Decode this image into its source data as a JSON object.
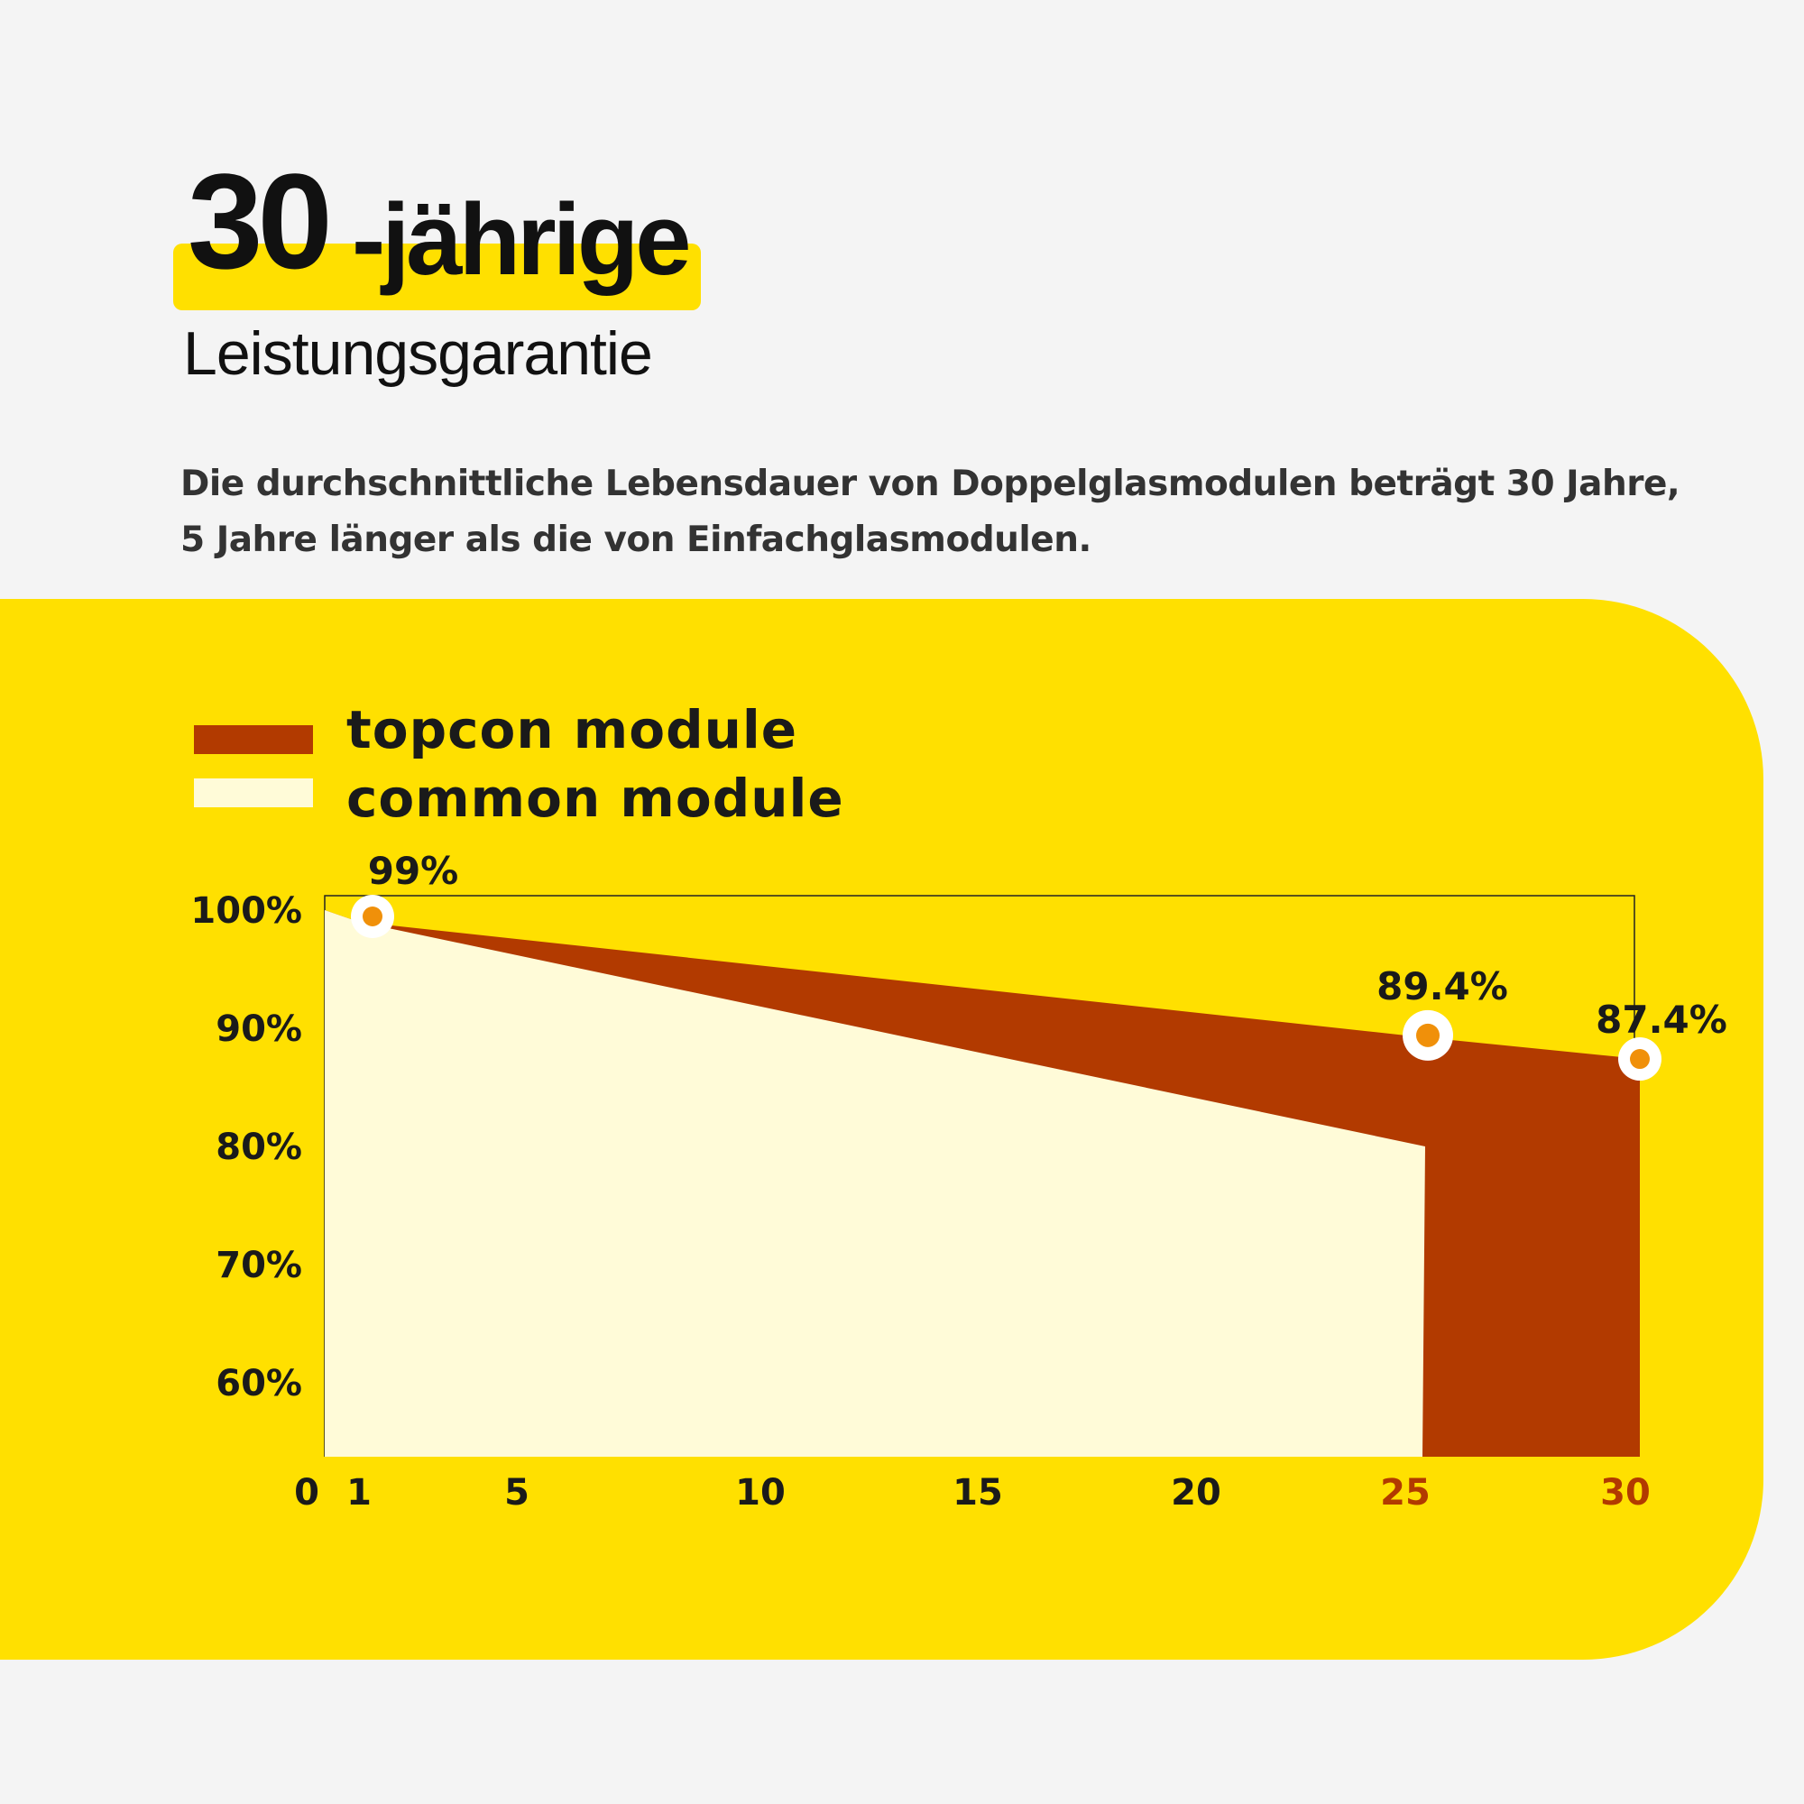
{
  "header": {
    "title_number": "30",
    "title_word": "-jährige",
    "subtitle": "Leistungsgarantie",
    "description": "Die durchschnittliche Lebensdauer von Doppelglasmodulen beträgt 30 Jahre, 5 Jahre länger als die von Einfachglasmodulen."
  },
  "colors": {
    "background": "#f4f4f4",
    "panel": "#ffe000",
    "topcon": "#b23a00",
    "common": "#fffbd8",
    "marker": "#f0900a",
    "highlight_tick": "#b23a00"
  },
  "chart_data": {
    "type": "area",
    "legend": [
      {
        "name": "topcon module",
        "color": "#b23a00"
      },
      {
        "name": "common module",
        "color": "#fffbd8"
      }
    ],
    "legend_position": "top-left",
    "x_ticks": [
      "0",
      "1",
      "5",
      "10",
      "15",
      "20",
      "25",
      "30"
    ],
    "x_highlight_ticks": [
      "25",
      "30"
    ],
    "y_ticks": [
      "100%",
      "90%",
      "80%",
      "70%",
      "60%"
    ],
    "xlim": [
      0,
      30
    ],
    "series": [
      {
        "name": "topcon module",
        "x": [
          0,
          1,
          25,
          30
        ],
        "y": [
          100,
          99,
          89.4,
          87.4
        ]
      },
      {
        "name": "common module",
        "x": [
          0,
          1,
          25
        ],
        "y": [
          100,
          99,
          80
        ]
      }
    ],
    "annotations": [
      {
        "x": 1,
        "y": 99,
        "label": "99%"
      },
      {
        "x": 25,
        "y": 89.4,
        "label": "89.4%"
      },
      {
        "x": 30,
        "y": 87.4,
        "label": "87.4%"
      }
    ]
  }
}
